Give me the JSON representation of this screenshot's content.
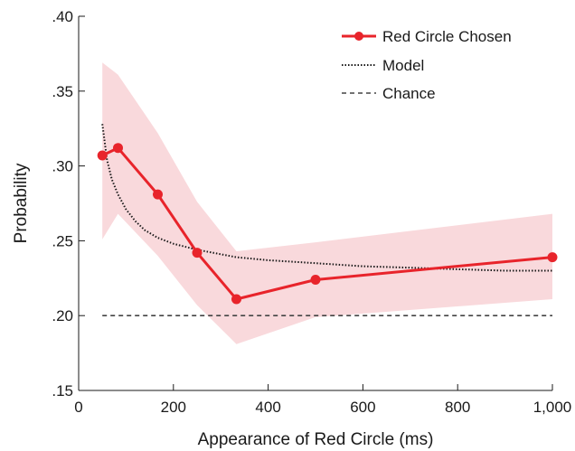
{
  "chart_data": {
    "type": "line",
    "title": "",
    "xlabel": "Appearance of Red Circle (ms)",
    "ylabel": "Probability",
    "xlim": [
      0,
      1000
    ],
    "ylim": [
      0.15,
      0.4
    ],
    "x_ticks": [
      {
        "value": 0,
        "label": "0"
      },
      {
        "value": 200,
        "label": "200"
      },
      {
        "value": 400,
        "label": "400"
      },
      {
        "value": 600,
        "label": "600"
      },
      {
        "value": 800,
        "label": "800"
      },
      {
        "value": 1000,
        "label": "1,000"
      }
    ],
    "y_ticks": [
      {
        "value": 0.15,
        "label": ".15"
      },
      {
        "value": 0.2,
        "label": ".20"
      },
      {
        "value": 0.25,
        "label": ".25"
      },
      {
        "value": 0.3,
        "label": ".30"
      },
      {
        "value": 0.35,
        "label": ".35"
      },
      {
        "value": 0.4,
        "label": ".40"
      }
    ],
    "grid": false,
    "legend_position": "top-right",
    "series": [
      {
        "name": "Red Circle Chosen",
        "style": "solid-with-markers",
        "color": "#e8242b",
        "x": [
          50,
          83,
          167,
          250,
          333,
          500,
          1000
        ],
        "y": [
          0.307,
          0.312,
          0.281,
          0.242,
          0.211,
          0.224,
          0.239
        ]
      },
      {
        "name": "Model",
        "style": "dotted",
        "color": "#1a1a1a",
        "x": [
          50,
          60,
          70,
          83,
          100,
          120,
          140,
          167,
          200,
          250,
          300,
          333,
          400,
          500,
          600,
          700,
          800,
          900,
          1000
        ],
        "y": [
          0.328,
          0.304,
          0.291,
          0.281,
          0.271,
          0.263,
          0.257,
          0.252,
          0.248,
          0.244,
          0.241,
          0.239,
          0.237,
          0.235,
          0.233,
          0.232,
          0.231,
          0.23,
          0.23
        ]
      },
      {
        "name": "Chance",
        "style": "dashed",
        "color": "#444444",
        "x": [
          50,
          1000
        ],
        "y": [
          0.2,
          0.2
        ]
      }
    ],
    "confidence_band": {
      "color": "#f9d9dc",
      "x": [
        50,
        83,
        167,
        250,
        333,
        500,
        1000
      ],
      "upper": [
        0.369,
        0.361,
        0.322,
        0.276,
        0.243,
        0.249,
        0.268
      ],
      "lower": [
        0.251,
        0.268,
        0.24,
        0.207,
        0.181,
        0.199,
        0.211
      ]
    }
  }
}
